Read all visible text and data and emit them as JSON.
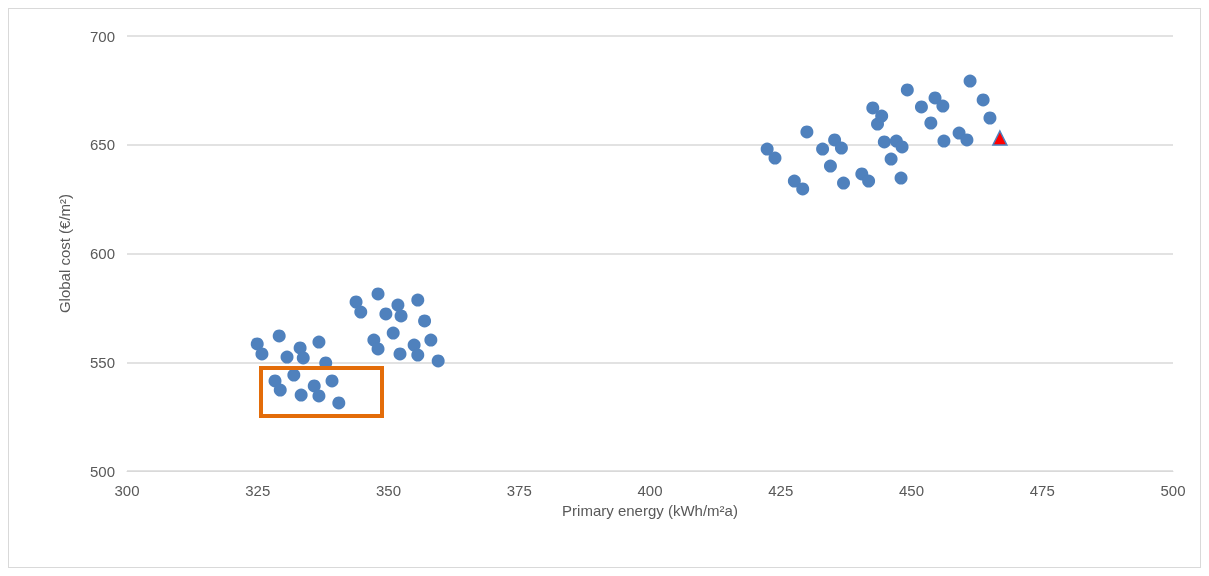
{
  "chart_data": {
    "type": "scatter",
    "xlabel": "Primary energy (kWh/m²a)",
    "ylabel": "Global cost (€/m²)",
    "xlim": [
      300,
      500
    ],
    "xticks": [
      300,
      325,
      350,
      375,
      400,
      425,
      450,
      475,
      500
    ],
    "ylim": [
      500,
      700
    ],
    "yticks": [
      500,
      550,
      600,
      650,
      700
    ],
    "grid": "y",
    "marker": "circle",
    "series": [
      {
        "color": "#4f81bd",
        "x": [
          324.9,
          325.8,
          329.1,
          330.6,
          333.1,
          333.7,
          336.7,
          338.0,
          328.3,
          329.3,
          331.9,
          333.3,
          335.8,
          336.7,
          339.2,
          340.5,
          343.8,
          344.7,
          348.0,
          349.5,
          351.8,
          352.4,
          355.6,
          356.9,
          347.2,
          348.0,
          350.9,
          352.2,
          354.9,
          355.6,
          358.1,
          359.5,
          422.4,
          423.9,
          430.0,
          427.6,
          429.2,
          433.0,
          435.3,
          436.6,
          434.5,
          437.0,
          442.6,
          443.5,
          444.3,
          440.5,
          441.8,
          444.8,
          447.1,
          448.2,
          446.1,
          448.0,
          449.2,
          451.9,
          454.5,
          456.0,
          453.7,
          456.2,
          459.1,
          460.6,
          461.2,
          463.7,
          465.0
        ],
        "values": [
          558.4,
          553.8,
          562.1,
          552.4,
          556.6,
          552.0,
          559.3,
          549.7,
          541.4,
          537.2,
          544.1,
          534.9,
          539.1,
          534.5,
          541.4,
          531.3,
          577.7,
          573.1,
          581.4,
          572.2,
          576.3,
          571.3,
          578.6,
          569.0,
          560.2,
          556.1,
          563.4,
          553.8,
          557.9,
          553.3,
          560.2,
          550.6,
          648.0,
          643.9,
          655.9,
          633.3,
          629.7,
          648.0,
          652.2,
          648.5,
          640.2,
          632.4,
          666.9,
          659.5,
          663.2,
          636.6,
          633.3,
          651.3,
          651.7,
          649.0,
          643.4,
          634.7,
          675.2,
          667.4,
          671.5,
          667.8,
          660.0,
          651.7,
          655.4,
          652.2,
          679.3,
          670.6,
          662.3
        ]
      },
      {
        "color": "#ff0000",
        "marker": "triangle",
        "x": [
          466.9
        ],
        "values": [
          653.1
        ]
      }
    ]
  }
}
